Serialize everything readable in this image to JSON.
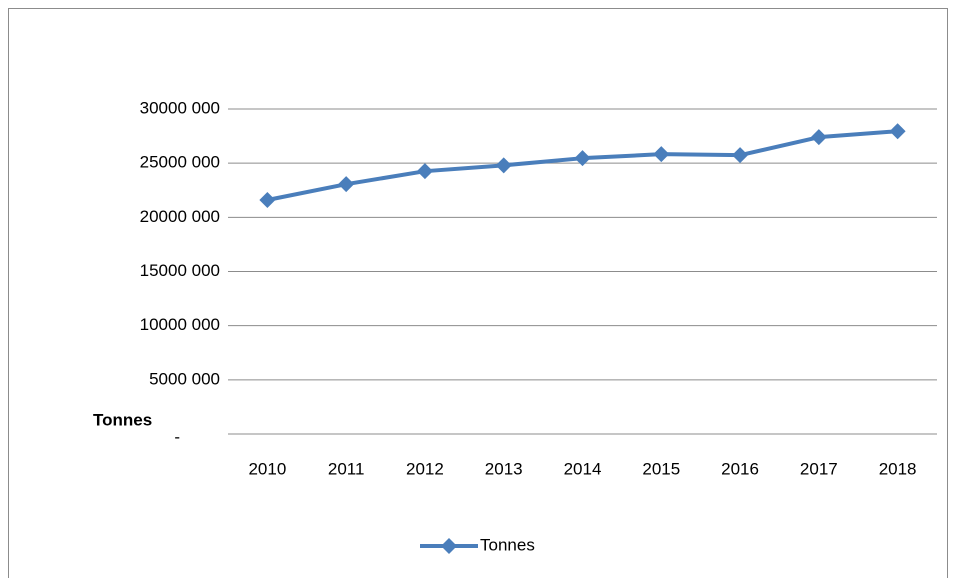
{
  "chart_data": {
    "type": "line",
    "y_label": "Tonnes",
    "categories": [
      "2010",
      "2011",
      "2012",
      "2013",
      "2014",
      "2015",
      "2016",
      "2017",
      "2018"
    ],
    "series": [
      {
        "name": "Tonnes",
        "color": "#4a7ebb",
        "values": [
          21600000,
          23060000,
          24260000,
          24800000,
          25460000,
          25830000,
          25740000,
          27400000,
          27950000
        ]
      }
    ],
    "ylim": [
      0,
      30000000
    ],
    "yticks": [
      {
        "value": 0,
        "label": "-"
      },
      {
        "value": 5000000,
        "label": "5000 000"
      },
      {
        "value": 10000000,
        "label": "10000 000"
      },
      {
        "value": 15000000,
        "label": "15000 000"
      },
      {
        "value": 20000000,
        "label": "20000 000"
      },
      {
        "value": 25000000,
        "label": "25000 000"
      },
      {
        "value": 30000000,
        "label": "30000 000"
      }
    ],
    "grid": true,
    "legend": "bottom"
  }
}
